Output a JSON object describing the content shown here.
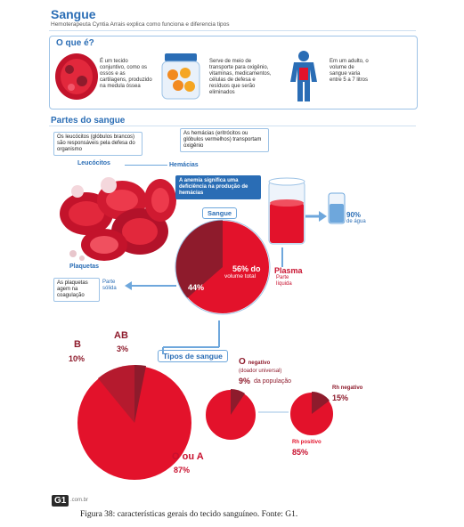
{
  "header": {
    "title": "Sangue",
    "subtitle": "Hemoterapeuta Cyntia Arrais explica como funciona e diferencia tipos"
  },
  "what_is": {
    "heading": "O que é?",
    "col1": "É um tecido conjuntivo, como os ossos e as cartilagens, produzido na medula óssea",
    "col2": "Serve de meio de transporte para oxigênio, vitaminas, medicamentos, células de defesa e resíduos que serão eliminados",
    "col3": "Em um adulto, o volume de sangue varia entre 5 a 7 litros"
  },
  "parts": {
    "heading": "Partes do sangue",
    "leucocitos_desc": "Os leucócitos (glóbulos brancos) são responsáveis pela defesa do organismo",
    "hemacias_desc": "As hemácias (eritrócitos ou glóbulos vermelhos) transportam oxigênio",
    "leucocitos_label": "Leucócitos",
    "hemacias_label": "Hemácias",
    "anemia_note": "A anemia significa uma deficiência na produção de hemácias",
    "sangue_label": "Sangue",
    "water_pct": "90%",
    "water_label": "de água",
    "plaquetas_label": "Plaquetas",
    "plaquetas_desc": "As plaquetas agem na coagulação",
    "solid_label": "Parte sólida",
    "solid_pct": "44%",
    "plasma_pct": "56% do",
    "plasma_vol": "volume total",
    "plasma_label": "Plasma",
    "liquid_label": "Parte líquida"
  },
  "types": {
    "heading": "Tipos de sangue",
    "b_label": "B",
    "b_pct": "10%",
    "ab_label": "AB",
    "ab_pct": "3%",
    "o_a_label": "O ou A",
    "o_a_pct": "87%",
    "oneg_label": "O",
    "oneg_sub1": "negativo",
    "oneg_sub2": "(doador universal)",
    "oneg_pct": "9%",
    "oneg_pop": "da população",
    "rhneg_label": "Rh negativo",
    "rhneg_pct": "15%",
    "rhpos_label": "Rh positivo",
    "rhpos_pct": "85%"
  },
  "footer": {
    "logo": "G1",
    "logo_domain": ".com.br",
    "caption": "Figura 38: características gerais do tecido sanguíneo. Fonte: G1."
  },
  "colors": {
    "blue": "#2a6db5",
    "red": "#e3122b",
    "dark_red": "#8e1b2c"
  }
}
